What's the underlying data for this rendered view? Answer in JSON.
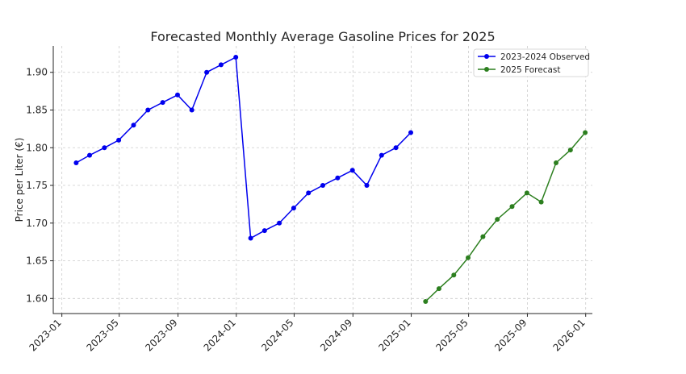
{
  "chart_data": {
    "type": "line",
    "title": "Forecasted Monthly Average Gasoline Prices for 2025",
    "xlabel": "",
    "ylabel": "Price per Liter (€)",
    "ylim": [
      1.58,
      1.935
    ],
    "xlim": [
      "2022-12-14",
      "2026-01-15"
    ],
    "grid": true,
    "legend_position": "top-right",
    "y_ticks": [
      "1.60",
      "1.65",
      "1.70",
      "1.75",
      "1.80",
      "1.85",
      "1.90"
    ],
    "x_ticks": [
      "2023-01",
      "2023-05",
      "2023-09",
      "2024-01",
      "2024-05",
      "2024-09",
      "2025-01",
      "2025-05",
      "2025-09",
      "2026-01"
    ],
    "series": [
      {
        "name": "2023-2024 Observed",
        "color": "#0000ee",
        "x": [
          "2023-01-31",
          "2023-02-28",
          "2023-03-31",
          "2023-04-30",
          "2023-05-31",
          "2023-06-30",
          "2023-07-31",
          "2023-08-31",
          "2023-09-30",
          "2023-10-31",
          "2023-11-30",
          "2023-12-31",
          "2024-01-31",
          "2024-02-29",
          "2024-03-31",
          "2024-04-30",
          "2024-05-31",
          "2024-06-30",
          "2024-07-31",
          "2024-08-31",
          "2024-09-30",
          "2024-10-31",
          "2024-11-30",
          "2024-12-31"
        ],
        "values": [
          1.78,
          1.79,
          1.8,
          1.81,
          1.83,
          1.85,
          1.86,
          1.87,
          1.85,
          1.9,
          1.91,
          1.92,
          1.68,
          1.69,
          1.7,
          1.72,
          1.74,
          1.75,
          1.76,
          1.77,
          1.75,
          1.79,
          1.8,
          1.82
        ]
      },
      {
        "name": "2025 Forecast",
        "color": "#2c7f1f",
        "x": [
          "2025-01-31",
          "2025-02-28",
          "2025-03-31",
          "2025-04-30",
          "2025-05-31",
          "2025-06-30",
          "2025-07-31",
          "2025-08-31",
          "2025-09-30",
          "2025-10-31",
          "2025-11-30",
          "2025-12-31"
        ],
        "values": [
          1.596,
          1.613,
          1.631,
          1.654,
          1.682,
          1.705,
          1.722,
          1.74,
          1.728,
          1.78,
          1.797,
          1.82
        ]
      }
    ]
  }
}
